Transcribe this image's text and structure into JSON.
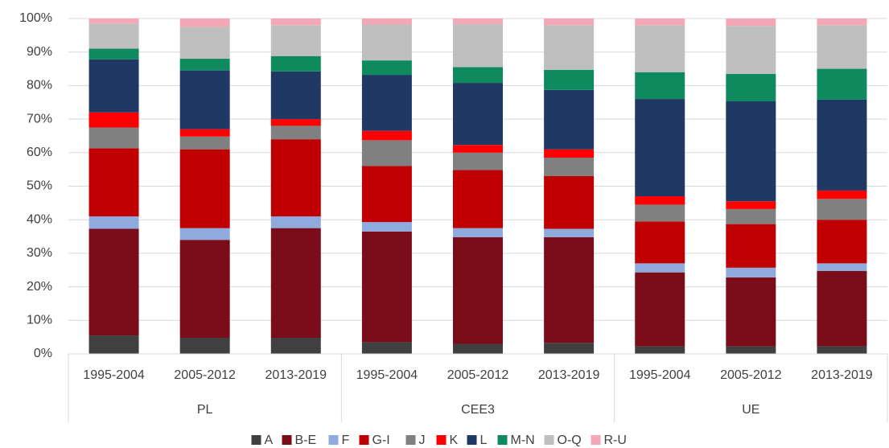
{
  "chart_data": {
    "type": "stacked-bar",
    "categories": [
      "1995-2004",
      "2005-2012",
      "2013-2019",
      "1995-2004",
      "2005-2012",
      "2013-2019",
      "1995-2004",
      "2005-2012",
      "2013-2019"
    ],
    "groups": [
      "PL",
      "CEE3",
      "UE"
    ],
    "series": [
      {
        "name": "A",
        "color": "#404040",
        "values": [
          5.5,
          4.8,
          4.8,
          3.5,
          3.0,
          3.3,
          2.3,
          2.3,
          2.3
        ]
      },
      {
        "name": "B-E",
        "color": "#7b0c1a",
        "values": [
          31.8,
          29.2,
          32.7,
          33.0,
          31.8,
          31.5,
          22.0,
          20.5,
          22.4
        ]
      },
      {
        "name": "F",
        "color": "#8faadc",
        "values": [
          3.7,
          3.5,
          3.5,
          2.8,
          2.7,
          2.5,
          2.7,
          2.9,
          2.3
        ]
      },
      {
        "name": "G-I",
        "color": "#c00000",
        "values": [
          20.3,
          23.5,
          23.0,
          16.7,
          17.3,
          15.7,
          12.5,
          13.0,
          13.0
        ]
      },
      {
        "name": "J",
        "color": "#808080",
        "values": [
          6.2,
          3.8,
          4.0,
          7.7,
          5.2,
          5.5,
          5.0,
          4.5,
          6.2
        ]
      },
      {
        "name": "K",
        "color": "#ff0000",
        "values": [
          4.5,
          2.2,
          2.0,
          2.8,
          2.3,
          2.5,
          2.5,
          2.3,
          2.5
        ]
      },
      {
        "name": "L",
        "color": "#203864",
        "values": [
          15.8,
          17.5,
          14.2,
          16.7,
          18.5,
          17.7,
          29.0,
          29.8,
          27.1
        ]
      },
      {
        "name": "M-N",
        "color": "#0f8a5f",
        "values": [
          3.2,
          3.5,
          4.6,
          4.3,
          4.7,
          6.0,
          8.0,
          8.2,
          9.2
        ]
      },
      {
        "name": "O-Q",
        "color": "#bfbfbf",
        "values": [
          7.5,
          9.5,
          9.2,
          10.7,
          12.8,
          13.3,
          14.0,
          14.3,
          13.0
        ]
      },
      {
        "name": "R-U",
        "color": "#f4a7b5",
        "values": [
          1.5,
          2.5,
          2.0,
          1.8,
          1.7,
          2.0,
          2.0,
          2.2,
          2.0
        ]
      }
    ],
    "ylim": [
      0,
      100
    ],
    "yticks": [
      {
        "value": 0,
        "label": "0%"
      },
      {
        "value": 10,
        "label": "10%"
      },
      {
        "value": 20,
        "label": "20%"
      },
      {
        "value": 30,
        "label": "30%"
      },
      {
        "value": 40,
        "label": "40%"
      },
      {
        "value": 50,
        "label": "50%"
      },
      {
        "value": 60,
        "label": "60%"
      },
      {
        "value": 70,
        "label": "70%"
      },
      {
        "value": 80,
        "label": "80%"
      },
      {
        "value": 90,
        "label": "90%"
      },
      {
        "value": 100,
        "label": "100%"
      }
    ],
    "grid": true
  }
}
